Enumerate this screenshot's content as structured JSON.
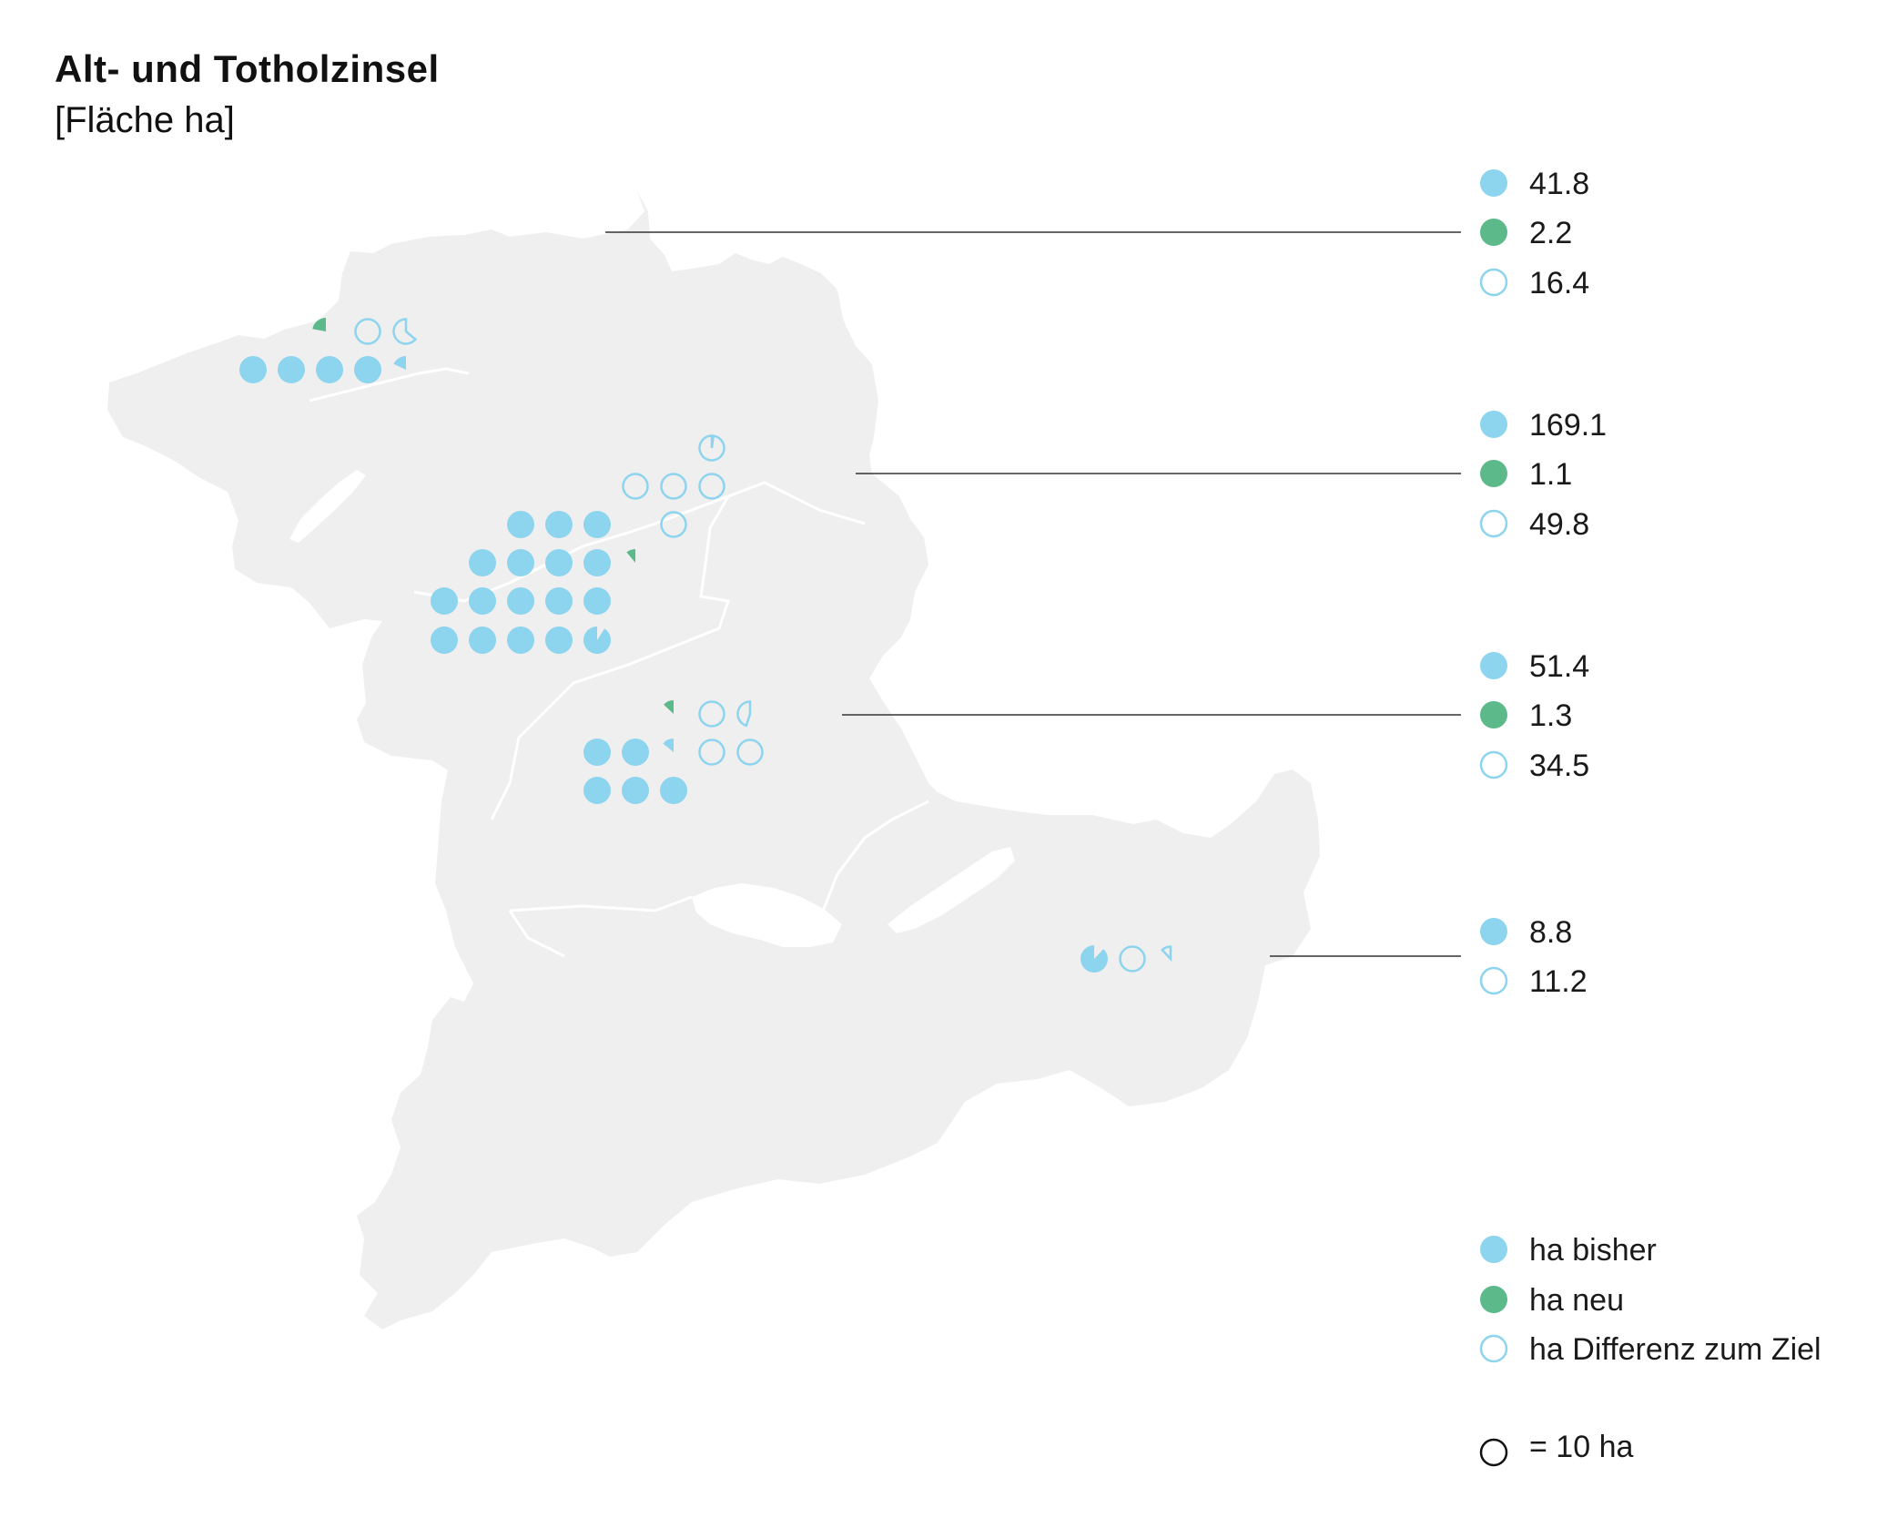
{
  "title": "Alt- und Totholzinsel",
  "subtitle": "[Fläche ha]",
  "colors": {
    "bisher": "#8dd4ee",
    "neu": "#5cb98a",
    "ziel_stroke": "#8dd4ee",
    "land": "#efefef",
    "border": "#ffffff",
    "leader": "#333333"
  },
  "unit_per_circle_ha": 10,
  "regions": [
    {
      "id": "region-nord-jura",
      "bisher": 41.8,
      "neu": 2.2,
      "ziel_diff": 16.4,
      "labels": [
        "41.8",
        "2.2",
        "16.4"
      ]
    },
    {
      "id": "region-mittelland",
      "bisher": 169.1,
      "neu": 1.1,
      "ziel_diff": 49.8,
      "labels": [
        "169.1",
        "1.1",
        "49.8"
      ]
    },
    {
      "id": "region-voralpen",
      "bisher": 51.4,
      "neu": 1.3,
      "ziel_diff": 34.5,
      "labels": [
        "51.4",
        "1.3",
        "34.5"
      ]
    },
    {
      "id": "region-oberland-ost",
      "bisher": 8.8,
      "ziel_diff": 11.2,
      "labels": [
        "8.8",
        "11.2"
      ]
    }
  ],
  "legend": {
    "items": [
      {
        "key": "bisher",
        "label": "ha bisher"
      },
      {
        "key": "neu",
        "label": "ha neu"
      },
      {
        "key": "ziel",
        "label": "ha Differenz zum Ziel"
      }
    ],
    "scale_label": "= 10 ha"
  }
}
